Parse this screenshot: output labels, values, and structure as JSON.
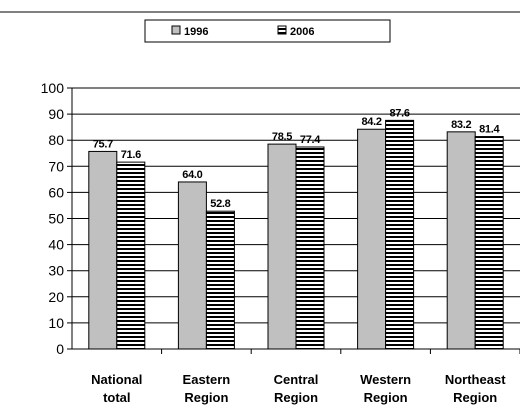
{
  "chart_data": {
    "type": "bar",
    "categories": [
      [
        "National",
        "total"
      ],
      [
        "Eastern",
        "Region"
      ],
      [
        "Central",
        "Region"
      ],
      [
        "Western",
        "Region"
      ],
      [
        "Northeast",
        "Region"
      ]
    ],
    "series": [
      {
        "name": "1996",
        "values": [
          75.7,
          64.0,
          78.5,
          84.2,
          83.2
        ],
        "labels": [
          "75.7",
          "64.0",
          "78.5",
          "84.2",
          "83.2"
        ],
        "fill": "solid-gray",
        "color": "#c0c0c0"
      },
      {
        "name": "2006",
        "values": [
          71.6,
          52.8,
          77.4,
          87.6,
          81.4
        ],
        "labels": [
          "71.6",
          "52.8",
          "77.4",
          "87.6",
          "81.4"
        ],
        "fill": "horizontal-stripes",
        "color": "#000000"
      }
    ],
    "title": "",
    "xlabel": "",
    "ylabel": "",
    "ylim": [
      0,
      100
    ],
    "yticks": [
      0,
      10,
      20,
      30,
      40,
      50,
      60,
      70,
      80,
      90,
      100
    ],
    "grid": "horizontal",
    "legend_position": "top"
  }
}
